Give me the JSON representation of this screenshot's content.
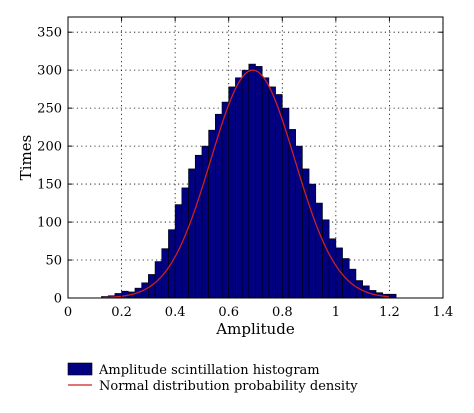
{
  "chart_data": {
    "type": "bar",
    "xlabel": "Amplitude",
    "ylabel": "Times",
    "xlim": [
      0,
      1.4
    ],
    "ylim": [
      0,
      370
    ],
    "x_ticks": [
      "0",
      "0.2",
      "0.4",
      "0.6",
      "0.8",
      "1",
      "1.2",
      "1.4"
    ],
    "y_ticks": [
      "0",
      "50",
      "100",
      "150",
      "200",
      "250",
      "300",
      "350"
    ],
    "grid": true,
    "legend_position": "bottom",
    "bin_width": 0.025,
    "series": [
      {
        "name": "Amplitude scintillation histogram",
        "kind": "histogram",
        "color": "#000080",
        "bin_starts": [
          0.125,
          0.15,
          0.175,
          0.2,
          0.225,
          0.25,
          0.275,
          0.3,
          0.325,
          0.35,
          0.375,
          0.4,
          0.425,
          0.45,
          0.475,
          0.5,
          0.525,
          0.55,
          0.575,
          0.6,
          0.625,
          0.65,
          0.675,
          0.7,
          0.725,
          0.75,
          0.775,
          0.8,
          0.825,
          0.85,
          0.875,
          0.9,
          0.925,
          0.95,
          0.975,
          1.0,
          1.025,
          1.05,
          1.075,
          1.1,
          1.125,
          1.15,
          1.175,
          1.2
        ],
        "values": [
          2,
          3,
          6,
          9,
          8,
          13,
          20,
          31,
          48,
          65,
          90,
          123,
          145,
          170,
          188,
          200,
          221,
          242,
          258,
          278,
          290,
          300,
          308,
          305,
          290,
          278,
          268,
          250,
          222,
          200,
          170,
          150,
          125,
          103,
          78,
          66,
          52,
          38,
          23,
          16,
          10,
          7,
          5,
          5
        ]
      },
      {
        "name": "Normal distribution probability density",
        "kind": "line",
        "color": "#cc2020",
        "mean": 0.69,
        "std": 0.157,
        "peak": 300,
        "x_range": [
          0.13,
          1.2
        ]
      }
    ]
  }
}
